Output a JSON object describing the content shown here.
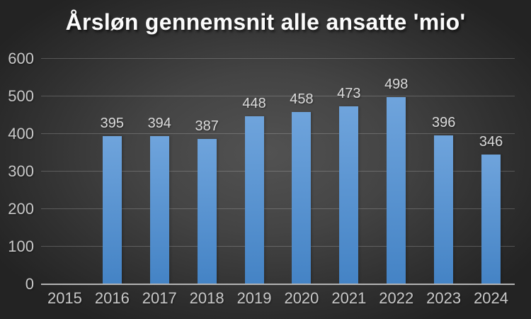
{
  "chart_data": {
    "type": "bar",
    "title": "Årsløn gennemsnit alle ansatte 'mio'",
    "categories": [
      "2015",
      "2016",
      "2017",
      "2018",
      "2019",
      "2020",
      "2021",
      "2022",
      "2023",
      "2024"
    ],
    "values": [
      null,
      395,
      394,
      387,
      448,
      458,
      473,
      498,
      396,
      346
    ],
    "data_labels": [
      "",
      "395",
      "394",
      "387",
      "448",
      "458",
      "473",
      "498",
      "396",
      "346"
    ],
    "y_ticks": [
      0,
      100,
      200,
      300,
      400,
      500,
      600
    ],
    "ylim": [
      0,
      600
    ],
    "xlabel": "",
    "ylabel": "",
    "grid": true,
    "legend_position": "none"
  },
  "colors": {
    "background_center": "#525252",
    "background_mid": "#444444",
    "background_outer": "#303030",
    "background_edge": "#232323",
    "bar_top": "#6fa4dc",
    "bar_bottom": "#4483c5",
    "gridline": "rgba(255,255,255,0.20)",
    "axis_line": "#b3b3b3",
    "axis_label": "#c9c9c9",
    "value_label": "#dcdcdc",
    "title": "#fbfbfb"
  }
}
